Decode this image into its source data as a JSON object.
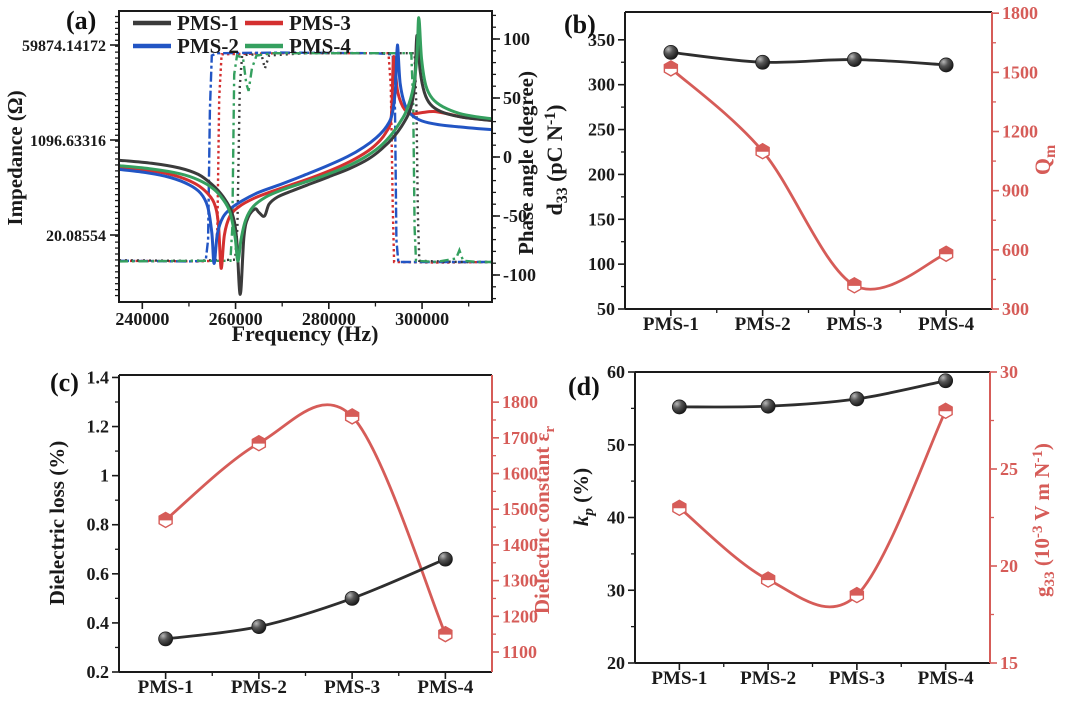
{
  "figure": {
    "background": "#ffffff",
    "sample_names": [
      "PMS-1",
      "PMS-2",
      "PMS-3",
      "PMS-4"
    ]
  },
  "chart_data": [
    {
      "panel": "a",
      "type": "line",
      "panel_label": "(a)",
      "xlabel": "Frequency (Hz)",
      "ylabel_left": "Impedance (Ω)",
      "ylabel_right": "Phase angle (degree)",
      "xlim": [
        235000,
        315000
      ],
      "x_major_ticks": [
        240000,
        260000,
        280000,
        300000
      ],
      "x_minor_ticks": [
        250000,
        270000,
        290000,
        310000
      ],
      "left_axis": {
        "scale": "log",
        "labeled_values": [
          "59874.14172",
          "1096.63316",
          "20.08554"
        ],
        "labeled_ln": [
          11,
          7,
          3
        ]
      },
      "right_axis": {
        "major_ticks": [
          100,
          50,
          0,
          -50,
          -100
        ],
        "minor_step": 10
      },
      "legend_order": [
        "PMS-1",
        "PMS-3",
        "PMS-2",
        "PMS-4"
      ],
      "series_colors": {
        "PMS-1": "#3b3b3b",
        "PMS-2": "#2255c4",
        "PMS-3": "#d43030",
        "PMS-4": "#35a05f"
      },
      "impedance_lnZ_vs_Hz": {
        "PMS-3": [
          [
            235000,
            5.84
          ],
          [
            242000,
            5.7
          ],
          [
            247000,
            5.5
          ],
          [
            251000,
            5.2
          ],
          [
            253500,
            4.85
          ],
          [
            255400,
            4.35
          ],
          [
            256300,
            3.5
          ],
          [
            256900,
            1.6
          ],
          [
            257600,
            3.0
          ],
          [
            258800,
            3.8
          ],
          [
            260800,
            4.2
          ],
          [
            264000,
            4.55
          ],
          [
            268000,
            4.85
          ],
          [
            272500,
            5.15
          ],
          [
            277500,
            5.5
          ],
          [
            282500,
            5.9
          ],
          [
            286500,
            6.3
          ],
          [
            289800,
            6.75
          ],
          [
            292200,
            7.3
          ],
          [
            293400,
            8.0
          ],
          [
            293900,
            10.5
          ],
          [
            294700,
            9.1
          ],
          [
            295900,
            8.4
          ],
          [
            297500,
            8.1
          ],
          [
            299800,
            8.15
          ],
          [
            302500,
            8.2
          ],
          [
            305500,
            8.1
          ],
          [
            309000,
            7.95
          ],
          [
            312500,
            7.87
          ],
          [
            316000,
            7.8
          ]
        ],
        "PMS-2": [
          [
            235000,
            5.76
          ],
          [
            241000,
            5.62
          ],
          [
            246000,
            5.42
          ],
          [
            250000,
            5.12
          ],
          [
            252500,
            4.76
          ],
          [
            254000,
            4.2
          ],
          [
            254900,
            3.1
          ],
          [
            255400,
            1.8
          ],
          [
            256100,
            3.05
          ],
          [
            257300,
            3.75
          ],
          [
            259000,
            4.12
          ],
          [
            261500,
            4.45
          ],
          [
            265000,
            4.8
          ],
          [
            269500,
            5.12
          ],
          [
            274500,
            5.5
          ],
          [
            279500,
            5.9
          ],
          [
            284000,
            6.3
          ],
          [
            287500,
            6.7
          ],
          [
            290200,
            7.1
          ],
          [
            292300,
            7.55
          ],
          [
            293600,
            8.1
          ],
          [
            294300,
            9.2
          ],
          [
            294700,
            11.0
          ],
          [
            295300,
            9.4
          ],
          [
            296300,
            8.5
          ],
          [
            297800,
            8.05
          ],
          [
            300000,
            7.8
          ],
          [
            303500,
            7.65
          ],
          [
            308000,
            7.55
          ],
          [
            312000,
            7.48
          ],
          [
            316000,
            7.42
          ]
        ],
        "PMS-1": [
          [
            235000,
            6.15
          ],
          [
            242000,
            6.02
          ],
          [
            248000,
            5.82
          ],
          [
            252000,
            5.55
          ],
          [
            255000,
            5.12
          ],
          [
            257300,
            4.62
          ],
          [
            259200,
            3.95
          ],
          [
            260200,
            2.9
          ],
          [
            261000,
            0.5
          ],
          [
            261800,
            2.95
          ],
          [
            262700,
            3.75
          ],
          [
            264200,
            4.1
          ],
          [
            265000,
            3.95
          ],
          [
            266200,
            3.8
          ],
          [
            267200,
            4.3
          ],
          [
            269000,
            4.6
          ],
          [
            272000,
            4.85
          ],
          [
            276000,
            5.15
          ],
          [
            280000,
            5.45
          ],
          [
            284500,
            5.8
          ],
          [
            288500,
            6.2
          ],
          [
            291500,
            6.65
          ],
          [
            294000,
            7.15
          ],
          [
            296000,
            7.7
          ],
          [
            297500,
            8.3
          ],
          [
            298400,
            9.3
          ],
          [
            298900,
            11.4
          ],
          [
            299600,
            9.9
          ],
          [
            300500,
            9.0
          ],
          [
            301800,
            8.5
          ],
          [
            304000,
            8.2
          ],
          [
            308000,
            7.98
          ],
          [
            312000,
            7.88
          ],
          [
            316000,
            7.8
          ]
        ],
        "PMS-4": [
          [
            235000,
            5.92
          ],
          [
            242000,
            5.78
          ],
          [
            248000,
            5.58
          ],
          [
            252000,
            5.32
          ],
          [
            255200,
            4.95
          ],
          [
            257300,
            4.5
          ],
          [
            258800,
            3.95
          ],
          [
            259900,
            2.9
          ],
          [
            260500,
            1.9
          ],
          [
            261200,
            2.85
          ],
          [
            262200,
            3.65
          ],
          [
            263800,
            4.2
          ],
          [
            266500,
            4.6
          ],
          [
            270000,
            4.9
          ],
          [
            274500,
            5.2
          ],
          [
            279000,
            5.5
          ],
          [
            283500,
            5.85
          ],
          [
            287500,
            6.25
          ],
          [
            290800,
            6.7
          ],
          [
            293300,
            7.2
          ],
          [
            295300,
            7.75
          ],
          [
            296800,
            8.3
          ],
          [
            298100,
            9.2
          ],
          [
            298900,
            10.5
          ],
          [
            299300,
            12.15
          ],
          [
            299900,
            10.4
          ],
          [
            300800,
            9.3
          ],
          [
            302200,
            8.75
          ],
          [
            304500,
            8.4
          ],
          [
            308000,
            8.12
          ],
          [
            312000,
            7.97
          ],
          [
            316000,
            7.87
          ]
        ]
      },
      "phase_deg_vs_Hz": {
        "PMS-3": [
          [
            235000,
            -88
          ],
          [
            252000,
            -88.5
          ],
          [
            255600,
            -88
          ],
          [
            256100,
            -60
          ],
          [
            256500,
            50
          ],
          [
            257000,
            87
          ],
          [
            270000,
            88
          ],
          [
            292800,
            88
          ],
          [
            293300,
            60
          ],
          [
            293700,
            -40
          ],
          [
            294000,
            -89
          ],
          [
            304000,
            -89.5
          ],
          [
            316000,
            -89
          ]
        ],
        "PMS-2": [
          [
            235000,
            -88
          ],
          [
            250000,
            -88.5
          ],
          [
            253600,
            -88
          ],
          [
            254100,
            -70
          ],
          [
            254500,
            40
          ],
          [
            254900,
            86
          ],
          [
            256000,
            88
          ],
          [
            270000,
            88.5
          ],
          [
            290000,
            88
          ],
          [
            293700,
            87
          ],
          [
            294200,
            40
          ],
          [
            294500,
            -70
          ],
          [
            294900,
            -89
          ],
          [
            305000,
            -89
          ],
          [
            316000,
            -89
          ]
        ],
        "PMS-1": [
          [
            235000,
            -87.5
          ],
          [
            250000,
            -88
          ],
          [
            259900,
            -87
          ],
          [
            260400,
            -60
          ],
          [
            260900,
            60
          ],
          [
            261400,
            86
          ],
          [
            263000,
            87
          ],
          [
            265600,
            86
          ],
          [
            266300,
            75
          ],
          [
            267200,
            86
          ],
          [
            275000,
            88
          ],
          [
            290000,
            88
          ],
          [
            298400,
            88
          ],
          [
            298800,
            40
          ],
          [
            299100,
            -50
          ],
          [
            299400,
            -88
          ],
          [
            308000,
            -89
          ],
          [
            316000,
            -89
          ]
        ],
        "PMS-4": [
          [
            235000,
            -88.5
          ],
          [
            252000,
            -88
          ],
          [
            258900,
            -88
          ],
          [
            259300,
            -60
          ],
          [
            259700,
            70
          ],
          [
            260300,
            86
          ],
          [
            261600,
            84
          ],
          [
            262300,
            62
          ],
          [
            262800,
            56
          ],
          [
            263500,
            75
          ],
          [
            264500,
            86
          ],
          [
            268000,
            88
          ],
          [
            285000,
            88
          ],
          [
            297700,
            88
          ],
          [
            298100,
            45
          ],
          [
            298400,
            -60
          ],
          [
            298700,
            -88
          ],
          [
            303000,
            -89
          ],
          [
            307300,
            -86
          ],
          [
            308000,
            -79
          ],
          [
            308800,
            -88
          ],
          [
            312000,
            -89
          ],
          [
            316000,
            -89
          ]
        ]
      }
    },
    {
      "panel": "b",
      "type": "line",
      "panel_label": "(b)",
      "categories": [
        "PMS-1",
        "PMS-2",
        "PMS-3",
        "PMS-4"
      ],
      "left": {
        "label": "d_{33} (pC N^{-1})",
        "color": "#1a1a1a",
        "ticks": [
          50,
          100,
          150,
          200,
          250,
          300,
          350
        ],
        "minor_ticks": [
          75,
          125,
          175,
          225,
          275,
          325
        ],
        "axis_bottom_top": [
          50,
          381
        ],
        "values": [
          336,
          325,
          328,
          322
        ]
      },
      "right": {
        "label": "Q_{m}",
        "color": "#d65c58",
        "ticks": [
          300,
          600,
          900,
          1200,
          1500,
          1800
        ],
        "minor_ticks": [
          450,
          750,
          1050,
          1350,
          1650
        ],
        "axis_bottom_top": [
          300,
          1806
        ],
        "values": [
          1520,
          1100,
          420,
          580
        ]
      }
    },
    {
      "panel": "c",
      "type": "line",
      "panel_label": "(c)",
      "categories": [
        "PMS-1",
        "PMS-2",
        "PMS-3",
        "PMS-4"
      ],
      "left": {
        "label": "Dielectric loss (%)",
        "color": "#1a1a1a",
        "ticks": [
          0.2,
          0.4,
          0.6,
          0.8,
          1.0,
          1.2,
          1.4
        ],
        "minor_ticks": [
          0.3,
          0.5,
          0.7,
          0.9,
          1.1,
          1.3
        ],
        "axis_bottom_top": [
          0.2,
          1.41
        ],
        "values": [
          0.335,
          0.385,
          0.5,
          0.66
        ]
      },
      "right": {
        "label": "Dielectric constant ε_{r}",
        "color": "#d65c58",
        "ticks": [
          1100,
          1200,
          1300,
          1400,
          1500,
          1600,
          1700,
          1800
        ],
        "minor_ticks": [
          1150,
          1250,
          1350,
          1450,
          1550,
          1650,
          1750
        ],
        "axis_bottom_top": [
          1044,
          1876
        ],
        "values": [
          1470,
          1685,
          1760,
          1150
        ]
      }
    },
    {
      "panel": "d",
      "type": "line",
      "panel_label": "(d)",
      "categories": [
        "PMS-1",
        "PMS-2",
        "PMS-3",
        "PMS-4"
      ],
      "left": {
        "label": "*k*_{*p*} (%)",
        "color": "#1a1a1a",
        "ticks": [
          20,
          30,
          40,
          50,
          60
        ],
        "minor_ticks": [
          25,
          35,
          45,
          55
        ],
        "axis_bottom_top": [
          20,
          60
        ],
        "values": [
          55.2,
          55.3,
          56.3,
          58.8
        ]
      },
      "right": {
        "label": "g_{33} (10^{-3} V m N^{-1})",
        "color": "#d65c58",
        "ticks": [
          15,
          20,
          25,
          30
        ],
        "minor_ticks": [
          17.5,
          22.5,
          27.5
        ],
        "axis_bottom_top": [
          15,
          30
        ],
        "values": [
          23.0,
          19.3,
          18.5,
          28.0
        ]
      }
    }
  ]
}
